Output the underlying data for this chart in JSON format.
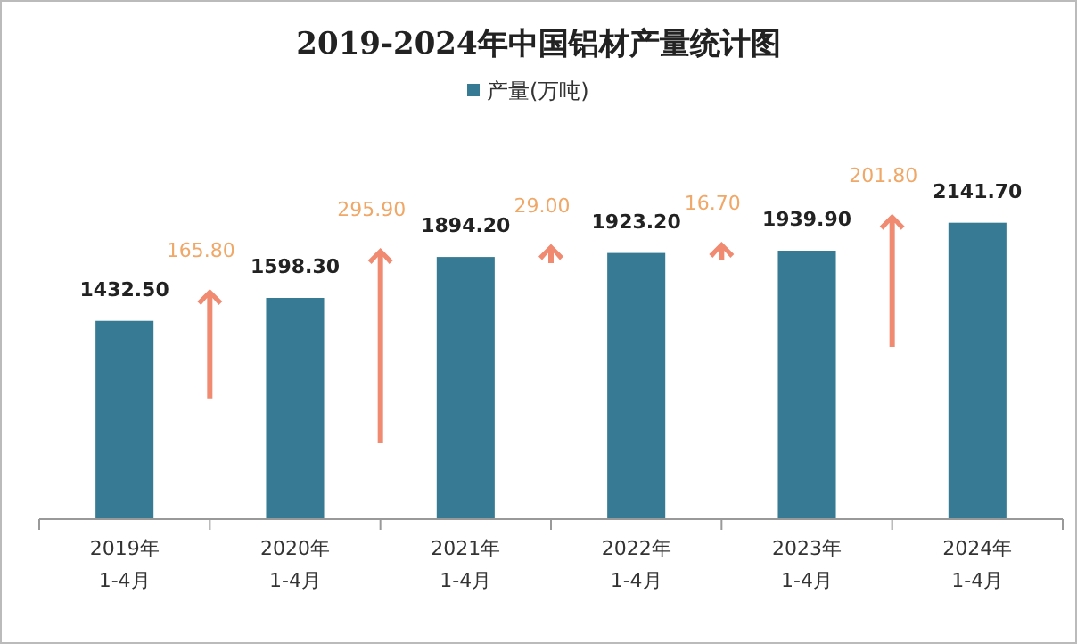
{
  "chart_data": {
    "type": "bar",
    "title": "2019-2024年中国铝材产量统计图",
    "categories": [
      "2019年\n1-4月",
      "2020年\n1-4月",
      "2021年\n1-4月",
      "2022年\n1-4月",
      "2023年\n1-4月",
      "2024年\n1-4月"
    ],
    "series": [
      {
        "name": "产量(万吨)",
        "color": "#367b93",
        "values": [
          1432.5,
          1598.3,
          1894.2,
          1923.2,
          1939.9,
          2141.7
        ],
        "value_labels": [
          "1432.50",
          "1598.30",
          "1894.20",
          "1923.20",
          "1939.90",
          "2141.70"
        ]
      }
    ],
    "legend": "top",
    "grid": false,
    "annotations": [
      "165.80",
      "295.90",
      "29.00",
      "16.70",
      "201.80"
    ]
  }
}
